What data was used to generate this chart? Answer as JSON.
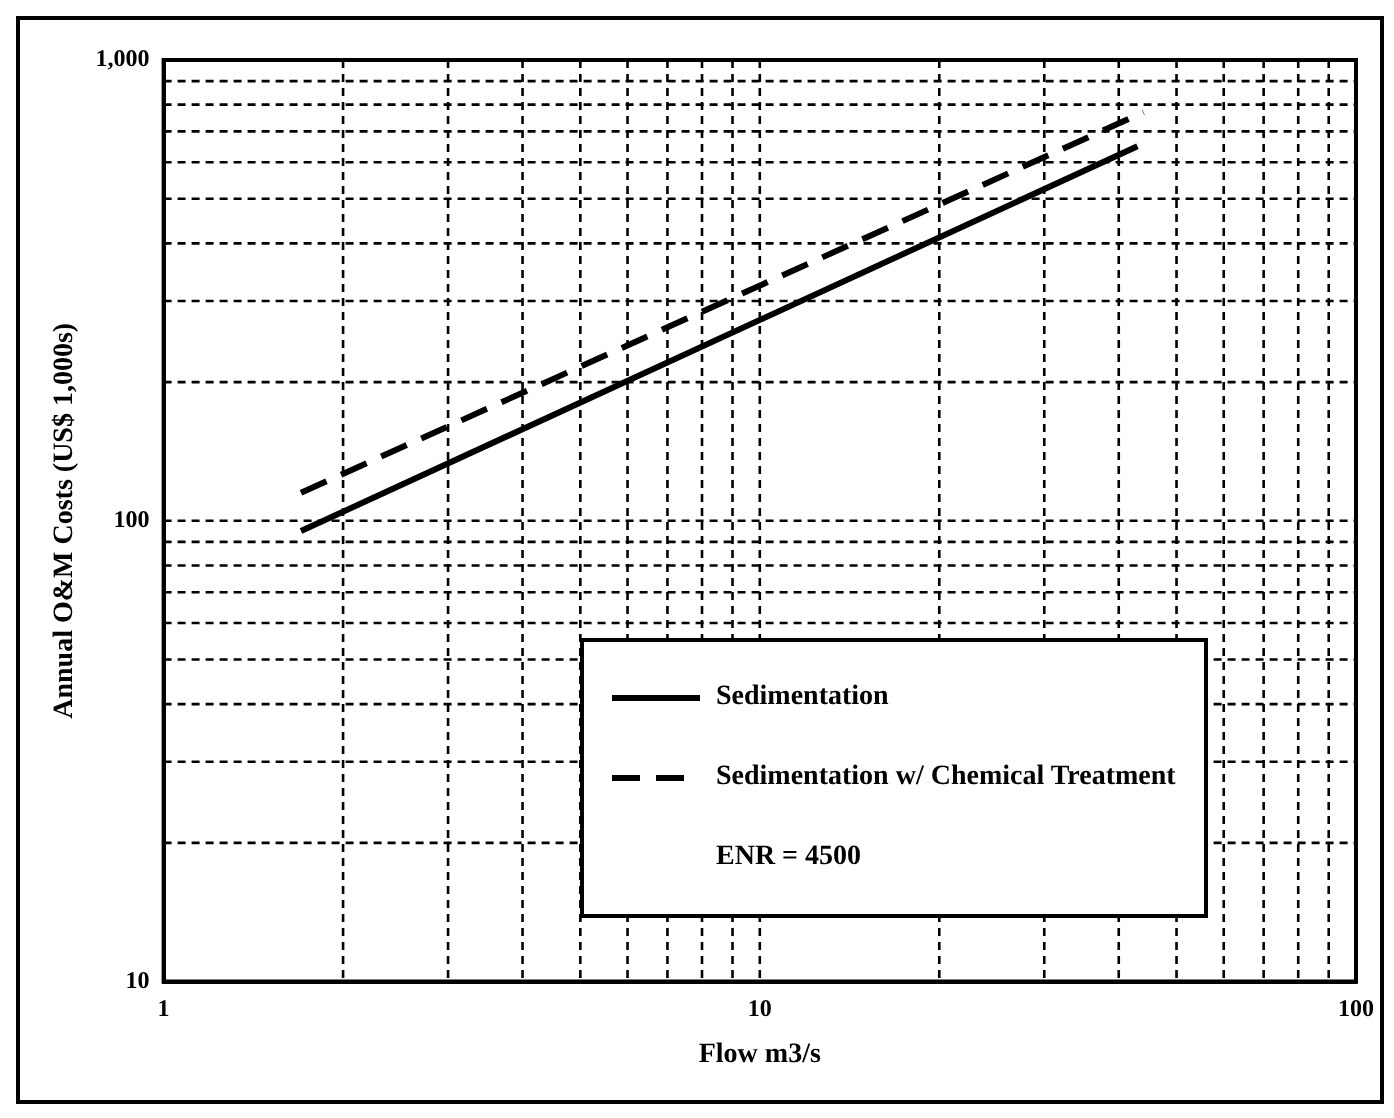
{
  "chart_data": {
    "type": "line",
    "xlabel": "Flow m3/s",
    "ylabel": "Annual O&M Costs (US$ 1,000s)",
    "log": "xy",
    "grid": true,
    "legend": "bottom right",
    "annotations": [
      "ENR = 4500"
    ],
    "xlim": [
      1,
      100
    ],
    "ylim": [
      10,
      1000
    ],
    "xticks": [
      1,
      {
        "value": 2,
        "label": null
      },
      {
        "value": 3,
        "label": null
      },
      {
        "value": 4,
        "label": null
      },
      {
        "value": 5,
        "label": null
      },
      {
        "value": 6,
        "label": null
      },
      {
        "value": 7,
        "label": null
      },
      {
        "value": 8,
        "label": null
      },
      {
        "value": 9,
        "label": null
      },
      10,
      {
        "value": 20,
        "label": null
      },
      {
        "value": 30,
        "label": null
      },
      {
        "value": 40,
        "label": null
      },
      {
        "value": 50,
        "label": null
      },
      {
        "value": 60,
        "label": null
      },
      {
        "value": 70,
        "label": null
      },
      {
        "value": 80,
        "label": null
      },
      {
        "value": 90,
        "label": null
      },
      100
    ],
    "yticks": [
      10,
      {
        "value": 20,
        "label": null
      },
      {
        "value": 30,
        "label": null
      },
      {
        "value": 40,
        "label": null
      },
      {
        "value": 50,
        "label": null
      },
      {
        "value": 60,
        "label": null
      },
      {
        "value": 70,
        "label": null
      },
      {
        "value": 80,
        "label": null
      },
      {
        "value": 90,
        "label": null
      },
      100,
      {
        "value": 200,
        "label": null
      },
      {
        "value": 300,
        "label": null
      },
      {
        "value": 400,
        "label": null
      },
      {
        "value": 500,
        "label": null
      },
      {
        "value": 600,
        "label": null
      },
      {
        "value": 700,
        "label": null
      },
      {
        "value": 800,
        "label": null
      },
      {
        "value": 900,
        "label": null
      },
      {
        "value": 1000,
        "label": "1,000"
      }
    ],
    "series": [
      {
        "name": "Sedimentation",
        "color": "#000000",
        "line_style": "solid",
        "x": [
          1.7,
          43
        ],
        "values": [
          95,
          650
        ]
      },
      {
        "name": "Sedimentation w/ Chemical Treatment",
        "color": "#000000",
        "line_style": "dashed",
        "x": [
          1.7,
          44
        ],
        "values": [
          115,
          770
        ]
      }
    ]
  }
}
